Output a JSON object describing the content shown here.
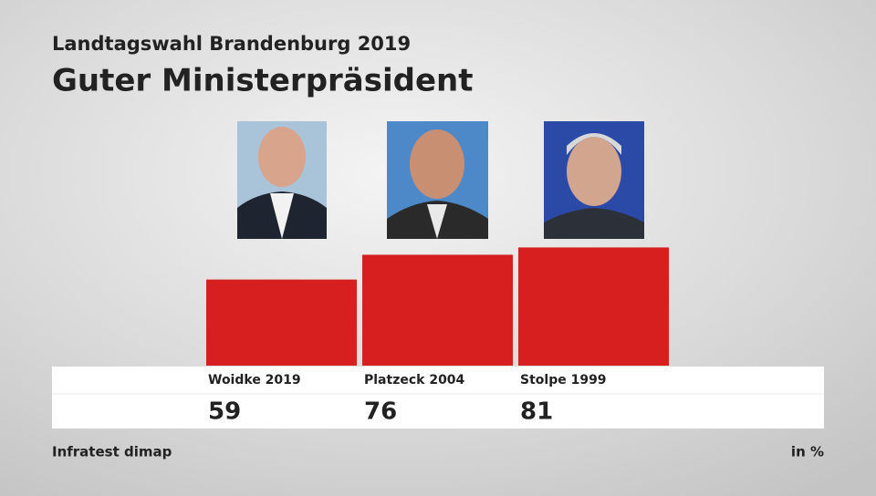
{
  "chart_data": {
    "type": "bar",
    "subtitle": "Landtagswahl Brandenburg 2019",
    "title": "Guter Ministerpräsident",
    "categories": [
      "Woidke 2019",
      "Platzeck 2004",
      "Stolpe 1999"
    ],
    "values": [
      59,
      76,
      81
    ],
    "color": "#d71f1f",
    "source": "Infratest dimap",
    "unit_note": "in %"
  }
}
